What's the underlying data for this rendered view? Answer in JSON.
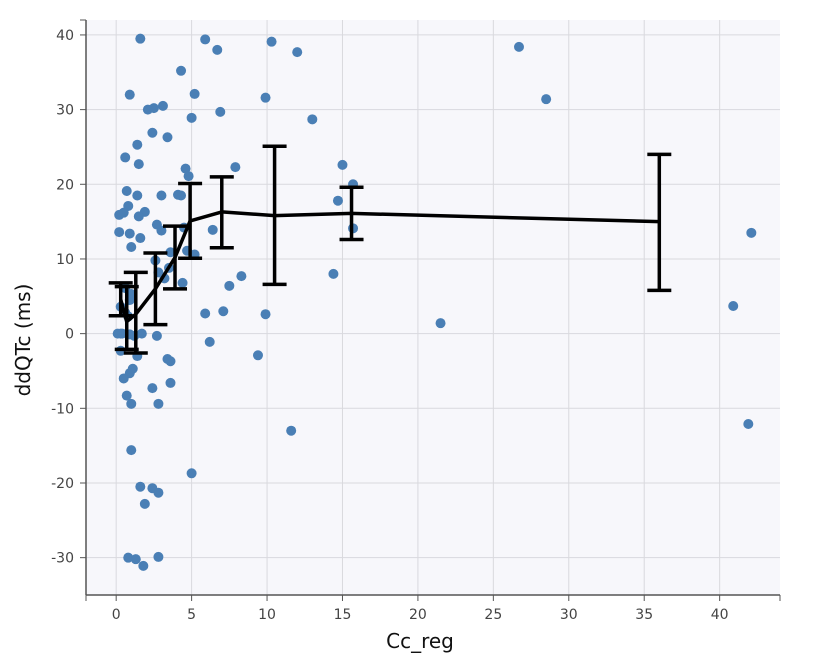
{
  "chart_data": {
    "type": "scatter",
    "xlabel": "Cc_reg",
    "ylabel": "ddQTc (ms)",
    "xlim": [
      -2,
      44
    ],
    "ylim": [
      -35,
      42
    ],
    "x_ticks": [
      0,
      5,
      10,
      15,
      20,
      25,
      30,
      35,
      40
    ],
    "y_ticks": [
      -30,
      -20,
      -10,
      0,
      10,
      20,
      30,
      40
    ],
    "x_tick_labels": [
      "0",
      "5",
      "10",
      "15",
      "20",
      "25",
      "30",
      "35",
      "40"
    ],
    "y_tick_labels": [
      "-30",
      "-20",
      "-10",
      "0",
      "10",
      "20",
      "30",
      "40"
    ],
    "grid": true,
    "colors": {
      "points": "#4a7fb5",
      "line": "#000000",
      "plot_bg": "#f7f7fb",
      "grid": "#d9d9de"
    },
    "series": [
      {
        "type": "scatter",
        "points": [
          [
            1.6,
            39.5
          ],
          [
            5.9,
            39.4
          ],
          [
            10.3,
            39.1
          ],
          [
            6.7,
            38
          ],
          [
            12,
            37.7
          ],
          [
            26.7,
            38.4
          ],
          [
            4.3,
            35.2
          ],
          [
            0.9,
            32
          ],
          [
            5.2,
            32.1
          ],
          [
            9.9,
            31.6
          ],
          [
            28.5,
            31.4
          ],
          [
            2.1,
            30
          ],
          [
            2.5,
            30.2
          ],
          [
            3.1,
            30.5
          ],
          [
            6.9,
            29.7
          ],
          [
            5,
            28.9
          ],
          [
            13,
            28.7
          ],
          [
            2.4,
            26.9
          ],
          [
            3.4,
            26.3
          ],
          [
            1.4,
            25.3
          ],
          [
            0.6,
            23.6
          ],
          [
            1.5,
            22.7
          ],
          [
            7.9,
            22.3
          ],
          [
            15,
            22.6
          ],
          [
            4.6,
            22.1
          ],
          [
            4.8,
            21.1
          ],
          [
            15.7,
            20
          ],
          [
            0.7,
            19.1
          ],
          [
            1.4,
            18.5
          ],
          [
            3,
            18.5
          ],
          [
            4.1,
            18.6
          ],
          [
            4.3,
            18.5
          ],
          [
            14.7,
            17.8
          ],
          [
            0.8,
            17.1
          ],
          [
            0.5,
            16.2
          ],
          [
            0.2,
            15.9
          ],
          [
            1.9,
            16.3
          ],
          [
            1.5,
            15.7
          ],
          [
            2.7,
            14.6
          ],
          [
            3,
            13.8
          ],
          [
            4.5,
            14.2
          ],
          [
            6.4,
            13.9
          ],
          [
            15.7,
            14.1
          ],
          [
            0.2,
            13.6
          ],
          [
            0.9,
            13.4
          ],
          [
            1.6,
            12.8
          ],
          [
            1,
            11.6
          ],
          [
            3.6,
            10.9
          ],
          [
            4.7,
            11.1
          ],
          [
            5.2,
            10.6
          ],
          [
            2.6,
            9.8
          ],
          [
            3.5,
            8.8
          ],
          [
            2.8,
            8.2
          ],
          [
            14.4,
            8
          ],
          [
            8.3,
            7.7
          ],
          [
            3.2,
            7.4
          ],
          [
            4.4,
            6.8
          ],
          [
            7.5,
            6.4
          ],
          [
            0.6,
            6.1
          ],
          [
            1,
            5.3
          ],
          [
            0.9,
            4.5
          ],
          [
            0.3,
            3.6
          ],
          [
            0.6,
            2.8
          ],
          [
            5.9,
            2.7
          ],
          [
            7.1,
            3
          ],
          [
            9.9,
            2.6
          ],
          [
            0.8,
            2.3
          ],
          [
            0.1,
            0
          ],
          [
            0.3,
            0
          ],
          [
            0.4,
            0
          ],
          [
            0.9,
            -0.1
          ],
          [
            1.2,
            -0.3
          ],
          [
            1.7,
            0
          ],
          [
            2.7,
            -0.3
          ],
          [
            6.2,
            -1.1
          ],
          [
            0.3,
            -2.3
          ],
          [
            1.4,
            -3
          ],
          [
            3.4,
            -3.4
          ],
          [
            3.6,
            -3.7
          ],
          [
            9.4,
            -2.9
          ],
          [
            1.1,
            -4.7
          ],
          [
            0.9,
            -5.3
          ],
          [
            0.5,
            -6
          ],
          [
            3.6,
            -6.6
          ],
          [
            2.4,
            -7.3
          ],
          [
            0.7,
            -8.3
          ],
          [
            1,
            -9.4
          ],
          [
            2.8,
            -9.4
          ],
          [
            11.6,
            -13
          ],
          [
            1,
            -15.6
          ],
          [
            5,
            -18.7
          ],
          [
            1.6,
            -20.5
          ],
          [
            2.4,
            -20.7
          ],
          [
            2.8,
            -21.3
          ],
          [
            1.9,
            -22.8
          ],
          [
            0.8,
            -30
          ],
          [
            1.3,
            -30.2
          ],
          [
            2.8,
            -29.9
          ],
          [
            1.8,
            -31.1
          ],
          [
            21.5,
            1.4
          ],
          [
            40.9,
            3.7
          ],
          [
            42.1,
            13.5
          ],
          [
            41.9,
            -12.1
          ]
        ]
      },
      {
        "type": "line-errorbar",
        "points": [
          {
            "x": 0.3,
            "y": 4.6,
            "lo": 2.4,
            "hi": 6.8
          },
          {
            "x": 0.7,
            "y": 1.6,
            "lo": -2.1,
            "hi": 6.3
          },
          {
            "x": 1.3,
            "y": 2.6,
            "lo": -2.6,
            "hi": 8.2
          },
          {
            "x": 2.6,
            "y": 6.0,
            "lo": 1.2,
            "hi": 10.8
          },
          {
            "x": 3.9,
            "y": 10.2,
            "lo": 6.0,
            "hi": 14.4
          },
          {
            "x": 4.9,
            "y": 15.1,
            "lo": 10.1,
            "hi": 20.1
          },
          {
            "x": 7.0,
            "y": 16.3,
            "lo": 11.5,
            "hi": 21.0
          },
          {
            "x": 10.5,
            "y": 15.8,
            "lo": 6.6,
            "hi": 25.1
          },
          {
            "x": 15.6,
            "y": 16.1,
            "lo": 12.6,
            "hi": 19.6
          },
          {
            "x": 36.0,
            "y": 15.0,
            "lo": 5.8,
            "hi": 24.0
          }
        ]
      }
    ]
  }
}
